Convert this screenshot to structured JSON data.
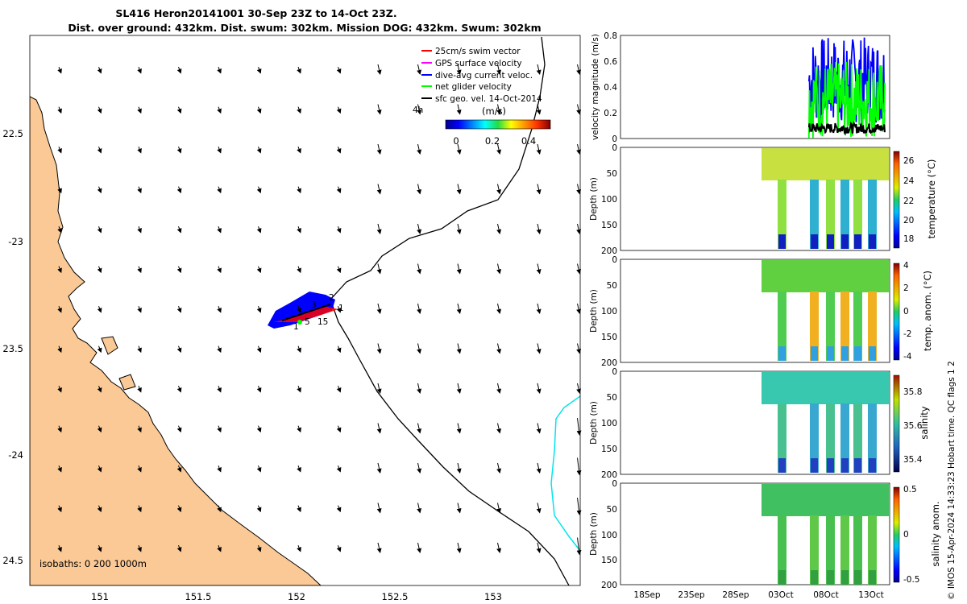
{
  "title": {
    "line1": "SL416 Heron20141001 30-Sep 23Z to 14-Oct 23Z.",
    "line2": "Dist. over ground: 432km. Dist. swum: 302km. Mission DOG: 432km. Swum: 302km"
  },
  "map": {
    "lon_ticks": [
      "151",
      "151.5",
      "152",
      "152.5",
      "153"
    ],
    "lat_ticks": [
      "22.5",
      "-23",
      "23.5",
      "-24",
      "24.5"
    ],
    "isobaths_label": "isobaths: 0   200  1000m",
    "legend": [
      {
        "label": "25cm/s swim vector",
        "color": "#ff0000"
      },
      {
        "label": "GPS surface velocity",
        "color": "#ff00ff"
      },
      {
        "label": "dive-avg current veloc.",
        "color": "#0000ff"
      },
      {
        "label": "net glider velocity",
        "color": "#00ff00"
      },
      {
        "label": "sfc geo. vel. 14-Oct-2014",
        "color": "#000000"
      }
    ],
    "legend_extra": "4h",
    "colorbar_title": "(m/s)",
    "colorbar_ticks": [
      "0",
      "0.2",
      "0.4"
    ],
    "track_labels": [
      "2",
      "3",
      "1",
      "5",
      "15",
      "1"
    ],
    "colors": {
      "land": "#fbc995",
      "coast_line": "#000000",
      "cyan_isobath": "#00e5ee"
    }
  },
  "chart_data": [
    {
      "type": "line",
      "ylabel": "velocity magnitude (m/s)",
      "ylim": [
        0,
        0.8
      ],
      "y_ticks": [
        "0",
        "0.2",
        "0.4",
        "0.6",
        "0.8"
      ],
      "series": [
        {
          "name": "dive-avg current veloc.",
          "color": "#0000ff"
        },
        {
          "name": "net glider velocity",
          "color": "#00ff00"
        },
        {
          "name": "sfc geo. vel.",
          "color": "#000000"
        }
      ],
      "data_start_frac": 0.7
    },
    {
      "type": "heatmap",
      "ylabel": "Depth (m)",
      "y_ticks": [
        "0",
        "50",
        "100",
        "150",
        "200"
      ],
      "colorbar_label": "temperature (°C)",
      "colorbar_ticks": [
        "26",
        "24",
        "22",
        "20",
        "18"
      ]
    },
    {
      "type": "heatmap",
      "ylabel": "Depth (m)",
      "y_ticks": [
        "0",
        "50",
        "100",
        "150",
        "200"
      ],
      "colorbar_label": "temp. anom. (°C)",
      "colorbar_ticks": [
        "4",
        "2",
        "0",
        "-2",
        "-4"
      ]
    },
    {
      "type": "heatmap",
      "ylabel": "Depth (m)",
      "y_ticks": [
        "0",
        "50",
        "100",
        "150",
        "200"
      ],
      "colorbar_label": "salinity",
      "colorbar_ticks": [
        "35.8",
        "35.6",
        "35.4"
      ]
    },
    {
      "type": "heatmap",
      "ylabel": "Depth (m)",
      "y_ticks": [
        "0",
        "50",
        "100",
        "150",
        "200"
      ],
      "colorbar_label": "salinity anom.",
      "colorbar_ticks": [
        "0.5",
        "0",
        "-0.5"
      ],
      "x_ticks": [
        "18Sep",
        "23Sep",
        "28Sep",
        "03Oct",
        "08Oct",
        "13Oct"
      ]
    }
  ],
  "footer": "© IMOS 15-Apr-2024 14:33:23 Hobart time. QC flags 1  2"
}
